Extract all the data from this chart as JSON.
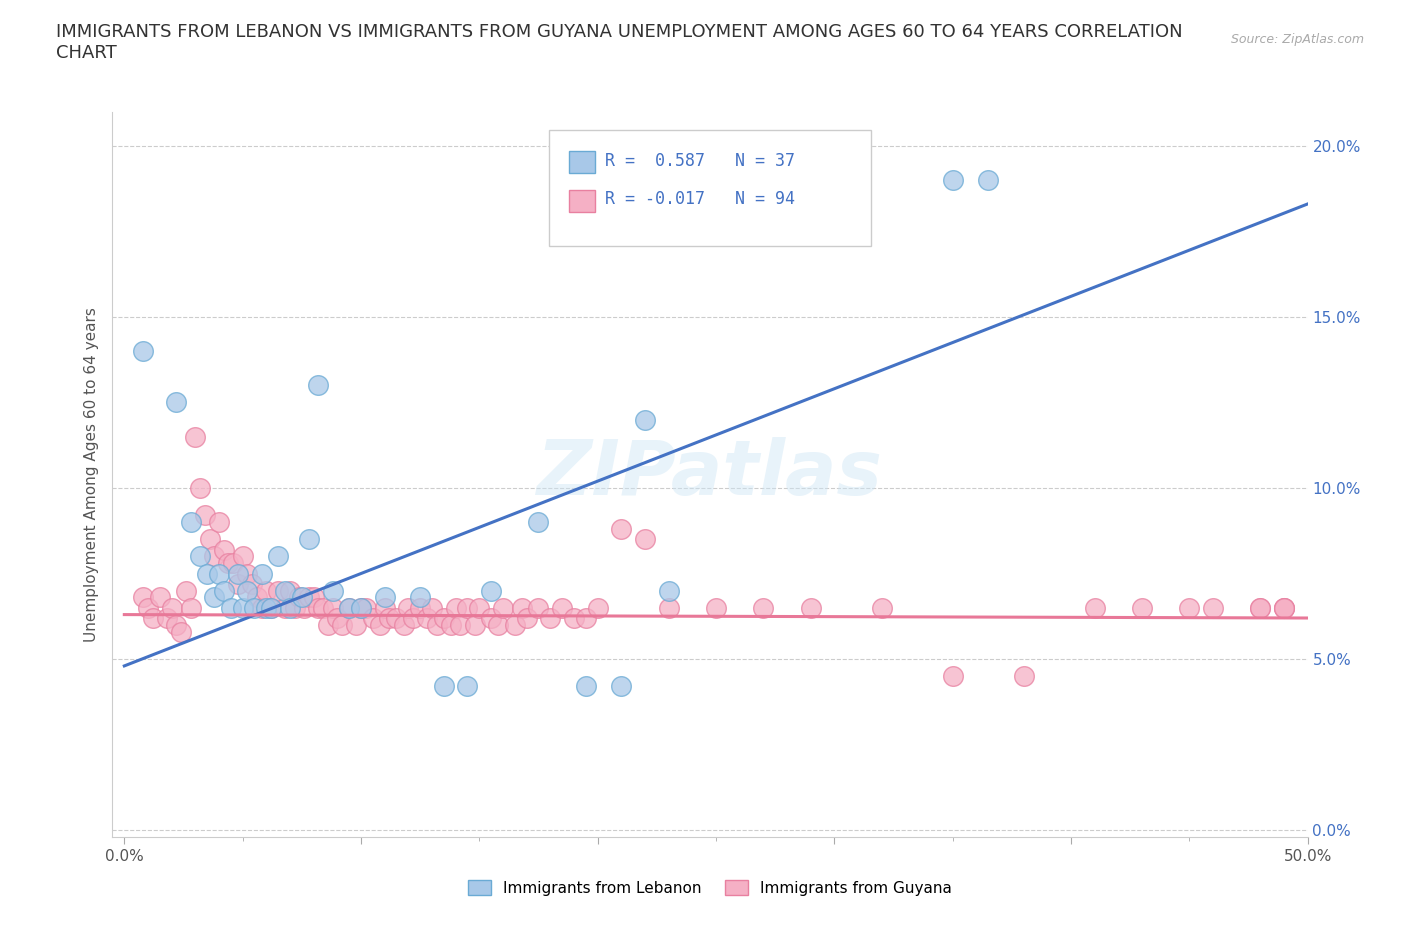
{
  "title": "IMMIGRANTS FROM LEBANON VS IMMIGRANTS FROM GUYANA UNEMPLOYMENT AMONG AGES 60 TO 64 YEARS CORRELATION\nCHART",
  "source_text": "Source: ZipAtlas.com",
  "ylabel": "Unemployment Among Ages 60 to 64 years",
  "xlim": [
    0.0,
    0.5
  ],
  "ylim": [
    0.0,
    0.21
  ],
  "xticks": [
    0.0,
    0.1,
    0.2,
    0.3,
    0.4,
    0.5
  ],
  "xticklabels": [
    "0.0%",
    "",
    "",
    "",
    "",
    "50.0%"
  ],
  "xminorticks": [
    0.05,
    0.1,
    0.15,
    0.2,
    0.25,
    0.3,
    0.35,
    0.4,
    0.45,
    0.5
  ],
  "yticks": [
    0.0,
    0.05,
    0.1,
    0.15,
    0.2
  ],
  "yticklabels": [
    "0.0%",
    "5.0%",
    "10.0%",
    "15.0%",
    "20.0%"
  ],
  "lebanon_color": "#a8c8e8",
  "guyana_color": "#f5b0c5",
  "lebanon_edge": "#6aaad4",
  "guyana_edge": "#e880a0",
  "line_lebanon": "#4472c4",
  "line_guyana": "#e87898",
  "R_lebanon": 0.587,
  "N_lebanon": 37,
  "R_guyana": -0.017,
  "N_guyana": 94,
  "watermark": "ZIPatlas",
  "leb_line_x0": 0.0,
  "leb_line_y0": 0.048,
  "leb_line_x1": 0.5,
  "leb_line_y1": 0.183,
  "guy_line_x0": 0.0,
  "guy_line_y0": 0.063,
  "guy_line_x1": 0.5,
  "guy_line_y1": 0.062,
  "lebanon_x": [
    0.008,
    0.022,
    0.028,
    0.032,
    0.035,
    0.038,
    0.04,
    0.042,
    0.045,
    0.048,
    0.05,
    0.052,
    0.055,
    0.058,
    0.06,
    0.062,
    0.065,
    0.068,
    0.07,
    0.075,
    0.078,
    0.082,
    0.088,
    0.095,
    0.1,
    0.11,
    0.125,
    0.135,
    0.145,
    0.155,
    0.175,
    0.195,
    0.21,
    0.22,
    0.23,
    0.35,
    0.365
  ],
  "lebanon_y": [
    0.14,
    0.125,
    0.09,
    0.08,
    0.075,
    0.068,
    0.075,
    0.07,
    0.065,
    0.075,
    0.065,
    0.07,
    0.065,
    0.075,
    0.065,
    0.065,
    0.08,
    0.07,
    0.065,
    0.068,
    0.085,
    0.13,
    0.07,
    0.065,
    0.065,
    0.068,
    0.068,
    0.042,
    0.042,
    0.07,
    0.09,
    0.042,
    0.042,
    0.12,
    0.07,
    0.19,
    0.19
  ],
  "guyana_x": [
    0.008,
    0.01,
    0.012,
    0.015,
    0.018,
    0.02,
    0.022,
    0.024,
    0.026,
    0.028,
    0.03,
    0.032,
    0.034,
    0.036,
    0.038,
    0.04,
    0.042,
    0.044,
    0.046,
    0.048,
    0.05,
    0.052,
    0.054,
    0.056,
    0.058,
    0.06,
    0.062,
    0.065,
    0.068,
    0.07,
    0.072,
    0.074,
    0.076,
    0.078,
    0.08,
    0.082,
    0.084,
    0.086,
    0.088,
    0.09,
    0.092,
    0.095,
    0.098,
    0.1,
    0.102,
    0.105,
    0.108,
    0.11,
    0.112,
    0.115,
    0.118,
    0.12,
    0.122,
    0.125,
    0.128,
    0.13,
    0.132,
    0.135,
    0.138,
    0.14,
    0.142,
    0.145,
    0.148,
    0.15,
    0.155,
    0.158,
    0.16,
    0.165,
    0.168,
    0.17,
    0.175,
    0.18,
    0.185,
    0.19,
    0.195,
    0.2,
    0.21,
    0.22,
    0.23,
    0.25,
    0.27,
    0.29,
    0.32,
    0.35,
    0.38,
    0.41,
    0.43,
    0.45,
    0.46,
    0.48,
    0.48,
    0.49,
    0.49,
    0.49
  ],
  "guyana_y": [
    0.068,
    0.065,
    0.062,
    0.068,
    0.062,
    0.065,
    0.06,
    0.058,
    0.07,
    0.065,
    0.115,
    0.1,
    0.092,
    0.085,
    0.08,
    0.09,
    0.082,
    0.078,
    0.078,
    0.072,
    0.08,
    0.075,
    0.072,
    0.068,
    0.065,
    0.07,
    0.065,
    0.07,
    0.065,
    0.07,
    0.065,
    0.068,
    0.065,
    0.068,
    0.068,
    0.065,
    0.065,
    0.06,
    0.065,
    0.062,
    0.06,
    0.065,
    0.06,
    0.065,
    0.065,
    0.062,
    0.06,
    0.065,
    0.062,
    0.062,
    0.06,
    0.065,
    0.062,
    0.065,
    0.062,
    0.065,
    0.06,
    0.062,
    0.06,
    0.065,
    0.06,
    0.065,
    0.06,
    0.065,
    0.062,
    0.06,
    0.065,
    0.06,
    0.065,
    0.062,
    0.065,
    0.062,
    0.065,
    0.062,
    0.062,
    0.065,
    0.088,
    0.085,
    0.065,
    0.065,
    0.065,
    0.065,
    0.065,
    0.045,
    0.045,
    0.065,
    0.065,
    0.065,
    0.065,
    0.065,
    0.065,
    0.065,
    0.065,
    0.065
  ]
}
